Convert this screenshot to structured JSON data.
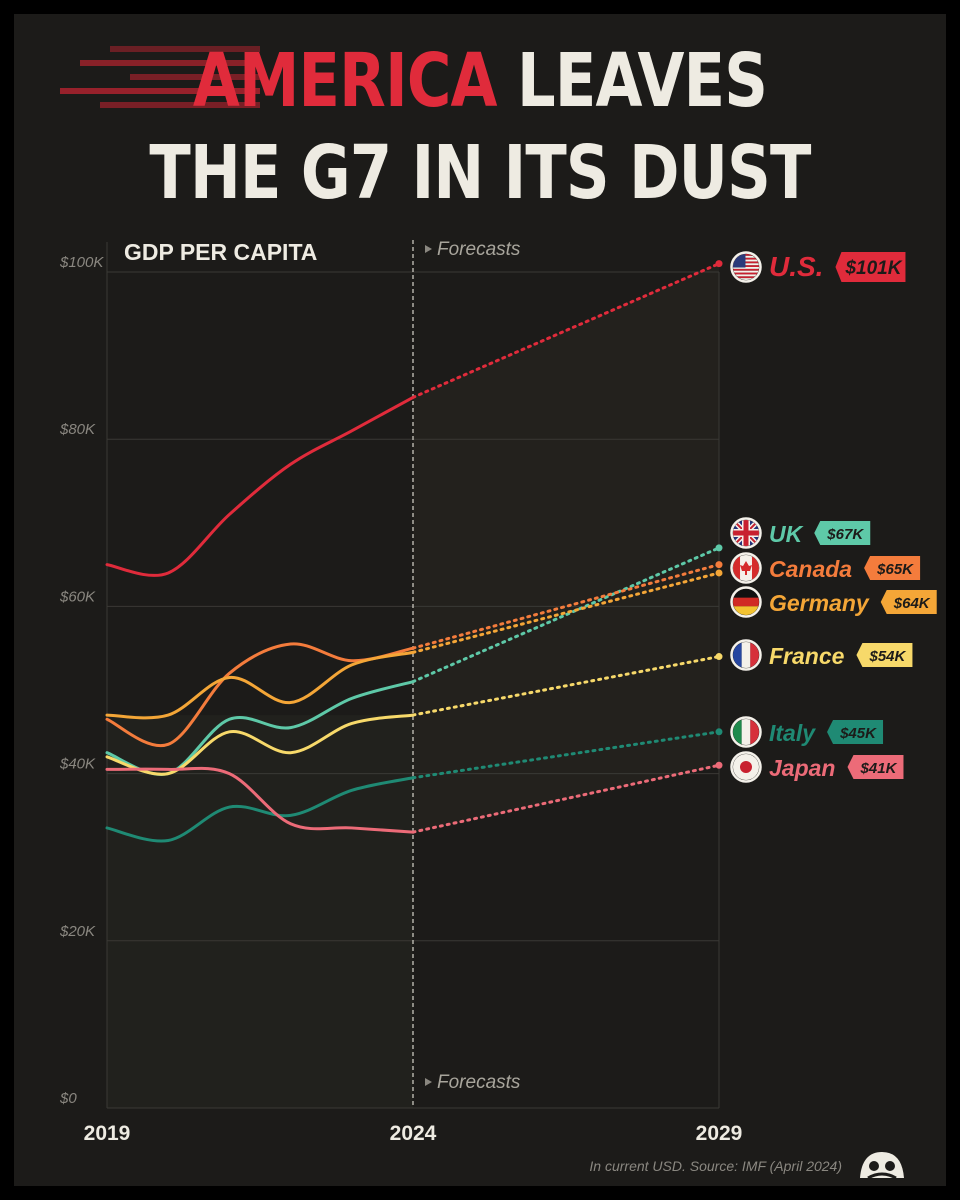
{
  "title": {
    "line1_highlight": "AMERICA",
    "line1_rest": "LEAVES",
    "line2": "THE G7 IN ITS DUST"
  },
  "colors": {
    "background": "#1c1b19",
    "text": "#eeebe2",
    "grid": "#3a3935",
    "axis_label": "#8a8780"
  },
  "chart_data": {
    "type": "line",
    "title": "GDP PER CAPITA",
    "forecast_label": "Forecasts",
    "forecast_start": 2024,
    "source": "In current USD. Source: IMF (April 2024)",
    "xlim": [
      2019,
      2029
    ],
    "ylim": [
      0,
      100000
    ],
    "x_ticks": [
      "2019",
      "2024",
      "2029"
    ],
    "y_ticks": [
      {
        "value": 0,
        "label": "$0"
      },
      {
        "value": 20000,
        "label": "$20K"
      },
      {
        "value": 40000,
        "label": "$40K"
      },
      {
        "value": 60000,
        "label": "$60K"
      },
      {
        "value": 80000,
        "label": "$80K"
      },
      {
        "value": 100000,
        "label": "$100K"
      }
    ],
    "grid": "horizontal",
    "series": [
      {
        "name": "U.S.",
        "value_label": "$101K",
        "color": "#e02b3b",
        "flag": "us-flag-icon",
        "x": [
          2019,
          2020,
          2021,
          2022,
          2023,
          2024,
          2029
        ],
        "y": [
          65000,
          64000,
          71000,
          77000,
          81000,
          85000,
          101000
        ]
      },
      {
        "name": "UK",
        "value_label": "$67K",
        "color": "#5ec9a8",
        "flag": "uk-flag-icon",
        "x": [
          2019,
          2020,
          2021,
          2022,
          2023,
          2024,
          2029
        ],
        "y": [
          42500,
          40000,
          46500,
          45500,
          49000,
          51000,
          67000
        ]
      },
      {
        "name": "Canada",
        "value_label": "$65K",
        "color": "#f47c3c",
        "flag": "canada-flag-icon",
        "x": [
          2019,
          2020,
          2021,
          2022,
          2023,
          2024,
          2029
        ],
        "y": [
          46500,
          43500,
          52000,
          55500,
          53500,
          55000,
          65000
        ]
      },
      {
        "name": "Germany",
        "value_label": "$64K",
        "color": "#f4a637",
        "flag": "germany-flag-icon",
        "x": [
          2019,
          2020,
          2021,
          2022,
          2023,
          2024,
          2029
        ],
        "y": [
          47000,
          47000,
          51500,
          48500,
          53000,
          54500,
          64000
        ]
      },
      {
        "name": "France",
        "value_label": "$54K",
        "color": "#f7d96a",
        "flag": "france-flag-icon",
        "x": [
          2019,
          2020,
          2021,
          2022,
          2023,
          2024,
          2029
        ],
        "y": [
          42000,
          40000,
          45000,
          42500,
          46000,
          47000,
          54000
        ]
      },
      {
        "name": "Italy",
        "value_label": "$45K",
        "color": "#1f8a74",
        "flag": "italy-flag-icon",
        "x": [
          2019,
          2020,
          2021,
          2022,
          2023,
          2024,
          2029
        ],
        "y": [
          33500,
          32000,
          36000,
          35000,
          38000,
          39500,
          45000
        ]
      },
      {
        "name": "Japan",
        "value_label": "$41K",
        "color": "#ec6b78",
        "flag": "japan-flag-icon",
        "x": [
          2019,
          2020,
          2021,
          2022,
          2023,
          2024,
          2029
        ],
        "y": [
          40500,
          40500,
          40000,
          34000,
          33500,
          33000,
          41000
        ]
      }
    ]
  }
}
